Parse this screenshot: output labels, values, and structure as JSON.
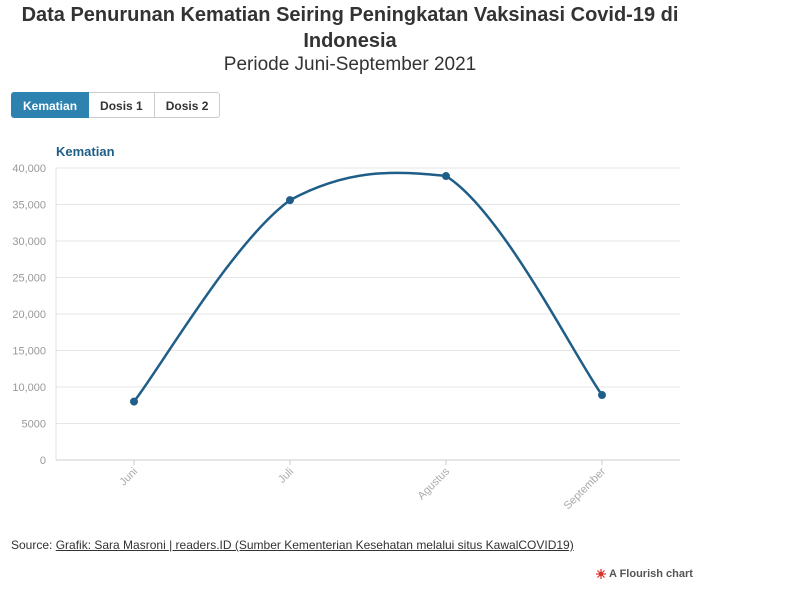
{
  "title": "Data Penurunan Kematian Seiring Peningkatan Vaksinasi Covid-19 di Indonesia",
  "subtitle": "Periode Juni-September 2021",
  "tabs": [
    {
      "label": "Kematian",
      "active": true
    },
    {
      "label": "Dosis 1",
      "active": false
    },
    {
      "label": "Dosis 2",
      "active": false
    }
  ],
  "series_label": "Kematian",
  "source": {
    "prefix": "Source: ",
    "link_text": "Grafik: Sara Masroni | readers.ID (Sumber Kementerian Kesehatan melalui situs KawalCOVID19)"
  },
  "branding": {
    "text": "A Flourish chart",
    "icon": "flourish-logo-icon"
  },
  "colors": {
    "line": "#1f5e88",
    "accent": "#2d82b0",
    "grid": "#e6e6e6",
    "axis_text": "#999999"
  },
  "chart_data": {
    "type": "line",
    "categories": [
      "Juni",
      "Juli",
      "Agustus",
      "September"
    ],
    "series": [
      {
        "name": "Kematian",
        "values": [
          8000,
          35600,
          38900,
          8900
        ]
      }
    ],
    "ylim": [
      0,
      40000
    ],
    "yticks": [
      0,
      5000,
      10000,
      15000,
      20000,
      25000,
      30000,
      35000,
      40000
    ],
    "ytick_labels": [
      "0",
      "5000",
      "10,000",
      "15,000",
      "20,000",
      "25,000",
      "30,000",
      "35,000",
      "40,000"
    ],
    "grid": true,
    "curve": "smooth"
  }
}
